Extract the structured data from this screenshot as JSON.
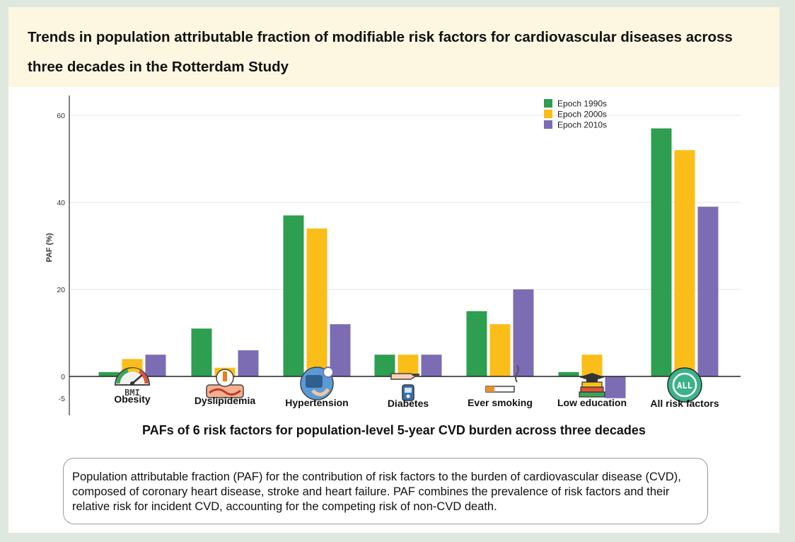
{
  "header": {
    "title": "Trends in population attributable fraction of modifiable risk factors for cardiovascular diseases across three decades in the Rotterdam Study"
  },
  "chart_data": {
    "type": "bar",
    "categories": [
      "Obesity",
      "Dyslipidemia",
      "Hypertension",
      "Diabetes",
      "Ever smoking",
      "Low education",
      "All risk factors"
    ],
    "series": [
      {
        "name": "Epoch 1990s",
        "color": "#2e9e50",
        "values": [
          1,
          11,
          37,
          5,
          15,
          1,
          57
        ]
      },
      {
        "name": "Epoch 2000s",
        "color": "#fbbd17",
        "values": [
          4,
          2,
          34,
          5,
          12,
          5,
          52
        ]
      },
      {
        "name": "Epoch 2010s",
        "color": "#7b6cb4",
        "values": [
          5,
          6,
          12,
          5,
          20,
          -5,
          39
        ]
      }
    ],
    "ylabel": "PAF (%)",
    "xlabel": "",
    "yticks": [
      60,
      40,
      20,
      0,
      -5
    ],
    "ylim": [
      -5,
      60
    ],
    "grid": true,
    "legend": "top-right",
    "icons": [
      "bmi-gauge-icon",
      "blood-vessel-icon",
      "blood-pressure-icon",
      "glucose-meter-icon",
      "cigarette-icon",
      "books-icon",
      "all-cycle-icon"
    ],
    "icon_texts": {
      "bmi": "BMI",
      "all": "ALL"
    }
  },
  "caption": "PAFs of 6 risk factors for population-level 5-year CVD burden across three decades",
  "note": "Population attributable fraction (PAF) for the contribution of risk factors to the burden of cardiovascular disease (CVD), composed of coronary heart disease, stroke and heart failure. PAF combines the prevalence of risk factors and their relative risk for incident CVD, accounting for the competing risk of non-CVD death."
}
